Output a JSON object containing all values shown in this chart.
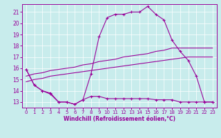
{
  "xlabel": "Windchill (Refroidissement éolien,°C)",
  "bg_color": "#c8ecec",
  "line_color": "#990099",
  "grid_color": "#ffffff",
  "xlim": [
    -0.5,
    23.5
  ],
  "ylim": [
    12.5,
    21.7
  ],
  "yticks": [
    13,
    14,
    15,
    16,
    17,
    18,
    19,
    20,
    21
  ],
  "xticks": [
    0,
    1,
    2,
    3,
    4,
    5,
    6,
    7,
    8,
    9,
    10,
    11,
    12,
    13,
    14,
    15,
    16,
    17,
    18,
    19,
    20,
    21,
    22,
    23
  ],
  "line1_x": [
    0,
    1,
    2,
    3,
    4,
    5,
    6,
    7,
    8,
    9,
    10,
    11,
    12,
    13,
    14,
    15,
    16,
    17,
    18,
    19,
    20,
    21,
    22,
    23
  ],
  "line1_y": [
    15.9,
    14.5,
    14.0,
    13.7,
    13.0,
    13.0,
    12.8,
    13.2,
    15.5,
    18.8,
    20.5,
    20.8,
    20.8,
    21.0,
    21.0,
    21.5,
    20.8,
    20.3,
    18.5,
    17.5,
    16.7,
    15.3,
    13.0,
    13.0
  ],
  "line2_x": [
    0,
    1,
    2,
    3,
    4,
    5,
    6,
    7,
    8,
    9,
    10,
    11,
    12,
    13,
    14,
    15,
    16,
    17,
    18,
    19,
    20,
    21,
    22,
    23
  ],
  "line2_y": [
    15.3,
    15.5,
    15.6,
    15.8,
    15.9,
    16.0,
    16.1,
    16.3,
    16.4,
    16.6,
    16.7,
    16.8,
    17.0,
    17.1,
    17.2,
    17.3,
    17.5,
    17.6,
    17.8,
    17.8,
    17.8,
    17.8,
    17.8,
    17.8
  ],
  "line3_x": [
    0,
    1,
    2,
    3,
    4,
    5,
    6,
    7,
    8,
    9,
    10,
    11,
    12,
    13,
    14,
    15,
    16,
    17,
    18,
    19,
    20,
    21,
    22,
    23
  ],
  "line3_y": [
    14.8,
    15.0,
    15.1,
    15.3,
    15.4,
    15.5,
    15.6,
    15.7,
    15.8,
    15.9,
    16.0,
    16.1,
    16.2,
    16.3,
    16.4,
    16.5,
    16.6,
    16.7,
    16.8,
    16.9,
    17.0,
    17.0,
    17.0,
    17.0
  ],
  "line4_x": [
    0,
    1,
    2,
    3,
    4,
    5,
    6,
    7,
    8,
    9,
    10,
    11,
    12,
    13,
    14,
    15,
    16,
    17,
    18,
    19,
    20,
    21,
    22,
    23
  ],
  "line4_y": [
    15.9,
    14.5,
    14.0,
    13.8,
    13.0,
    13.0,
    12.8,
    13.2,
    13.5,
    13.5,
    13.3,
    13.3,
    13.3,
    13.3,
    13.3,
    13.3,
    13.2,
    13.2,
    13.2,
    13.0,
    13.0,
    13.0,
    13.0,
    13.0
  ]
}
